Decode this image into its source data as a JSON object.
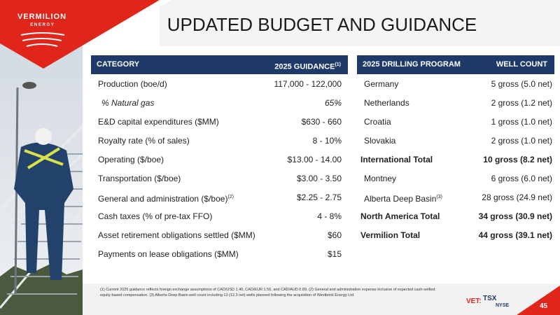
{
  "logo": {
    "name": "VERMILION",
    "sub": "E N E R G Y"
  },
  "title": "UPDATED BUDGET AND GUIDANCE",
  "guidance_table": {
    "columns": [
      {
        "text": "CATEGORY"
      },
      {
        "text": "2025 GUIDANCE",
        "note": "(1)"
      }
    ],
    "rows": [
      {
        "label": "Production (boe/d)",
        "value": "117,000 - 122,000"
      },
      {
        "label": "% Natural gas",
        "value": "65%",
        "italic": true
      },
      {
        "label": "E&D capital expenditures ($MM)",
        "value": "$630 - 660"
      },
      {
        "label": "Royalty rate (% of sales)",
        "value": "8 - 10%"
      },
      {
        "label": "Operating ($/boe)",
        "value": "$13.00 - 14.00"
      },
      {
        "label": "Transportation ($/boe)",
        "value": "$3.00 - 3.50"
      },
      {
        "label": "General and administration ($/boe)",
        "note": "(2)",
        "value": "$2.25 - 2.75"
      },
      {
        "label": "Cash taxes (% of pre-tax FFO)",
        "value": "4 - 8%"
      },
      {
        "label": "Asset retirement obligations settled ($MM)",
        "value": "$60"
      },
      {
        "label": "Payments on lease obligations ($MM)",
        "value": "$15"
      }
    ]
  },
  "drilling_table": {
    "columns": [
      {
        "text": "2025 DRILLING PROGRAM"
      },
      {
        "text": "WELL COUNT"
      }
    ],
    "rows": [
      {
        "label": "Germany",
        "value": "5 gross (5.0 net)"
      },
      {
        "label": "Netherlands",
        "value": "2 gross (1.2 net)"
      },
      {
        "label": "Croatia",
        "value": "1 gross (1.0 net)"
      },
      {
        "label": "Slovakia",
        "value": "2 gross (1.0 net)"
      },
      {
        "label": "International Total",
        "value": "10 gross (8.2 net)",
        "bold": true
      },
      {
        "label": "Montney",
        "value": "6 gross (6.0 net)"
      },
      {
        "label": "Alberta Deep Basin",
        "note": "(3)",
        "value": "28 gross (24.9 net)"
      },
      {
        "label": "North America Total",
        "value": "34 gross (30.9 net)",
        "bold": true
      },
      {
        "label": "Vermilion Total",
        "value": "44 gross (39.1 net)",
        "bold": true
      }
    ]
  },
  "footnote": "(1) Current 2025 guidance reflects foreign exchange assumptions of CAD/USD 1.40, CAD/EUR 1.56, and CAD/AUD 0.89. (2) General and administration expense inclusive of expected cash-settled equity-based compensation. (3) Alberta Deep Basin well count including 13 (12.3 net) wells planned following the acquisition of Westbrick Energy Ltd.",
  "footer": {
    "ticker": "VET:",
    "exchange1": "TSX",
    "exchange2": "NYSE",
    "page": "45"
  }
}
